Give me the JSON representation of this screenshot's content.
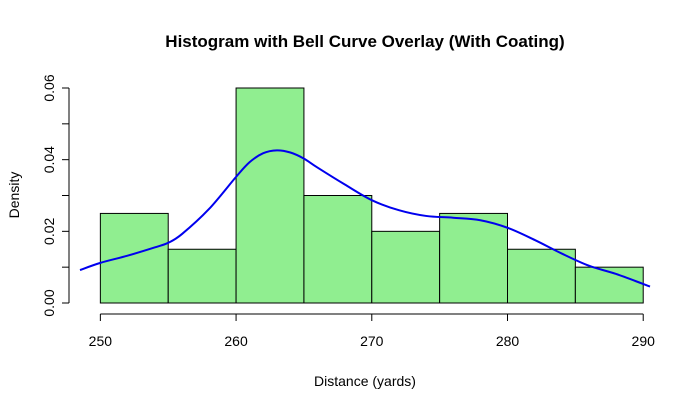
{
  "chart_data": {
    "type": "bar",
    "title": "Histogram with Bell Curve Overlay (With Coating)",
    "xlabel": "Distance (yards)",
    "ylabel": "Density",
    "xlim": [
      248.5,
      290.5
    ],
    "ylim": [
      0,
      0.06
    ],
    "x_ticks": [
      250,
      260,
      270,
      280,
      290
    ],
    "x_tick_labels": [
      "250",
      "260",
      "270",
      "280",
      "290"
    ],
    "y_ticks": [
      0,
      0.01,
      0.02,
      0.03,
      0.04,
      0.05,
      0.06
    ],
    "y_tick_labels": [
      "0.00",
      "",
      "0.02",
      "",
      "0.04",
      "",
      "0.06"
    ],
    "bins": [
      {
        "start": 250,
        "end": 255,
        "density": 0.025
      },
      {
        "start": 255,
        "end": 260,
        "density": 0.015
      },
      {
        "start": 260,
        "end": 265,
        "density": 0.06
      },
      {
        "start": 265,
        "end": 270,
        "density": 0.03
      },
      {
        "start": 270,
        "end": 275,
        "density": 0.02
      },
      {
        "start": 275,
        "end": 280,
        "density": 0.025
      },
      {
        "start": 280,
        "end": 285,
        "density": 0.015
      },
      {
        "start": 285,
        "end": 290,
        "density": 0.01
      }
    ],
    "curve": {
      "x": [
        248.5,
        250,
        252,
        254,
        255,
        256,
        258,
        260,
        261,
        262,
        263,
        264,
        265,
        266,
        268,
        270,
        272,
        274,
        276,
        278,
        280,
        282,
        284,
        286,
        288,
        290.5
      ],
      "y": [
        0.0092,
        0.0112,
        0.0132,
        0.0155,
        0.0168,
        0.0192,
        0.0262,
        0.0352,
        0.0393,
        0.0418,
        0.0426,
        0.042,
        0.0403,
        0.0378,
        0.0331,
        0.0287,
        0.0259,
        0.0243,
        0.0238,
        0.0231,
        0.021,
        0.0176,
        0.0138,
        0.0104,
        0.0081,
        0.0046
      ]
    },
    "colors": {
      "bar_fill": "#90ee90",
      "bar_stroke": "#000000",
      "curve": "#0000ee",
      "axis": "#000000"
    },
    "grid": false,
    "legend": "none"
  }
}
